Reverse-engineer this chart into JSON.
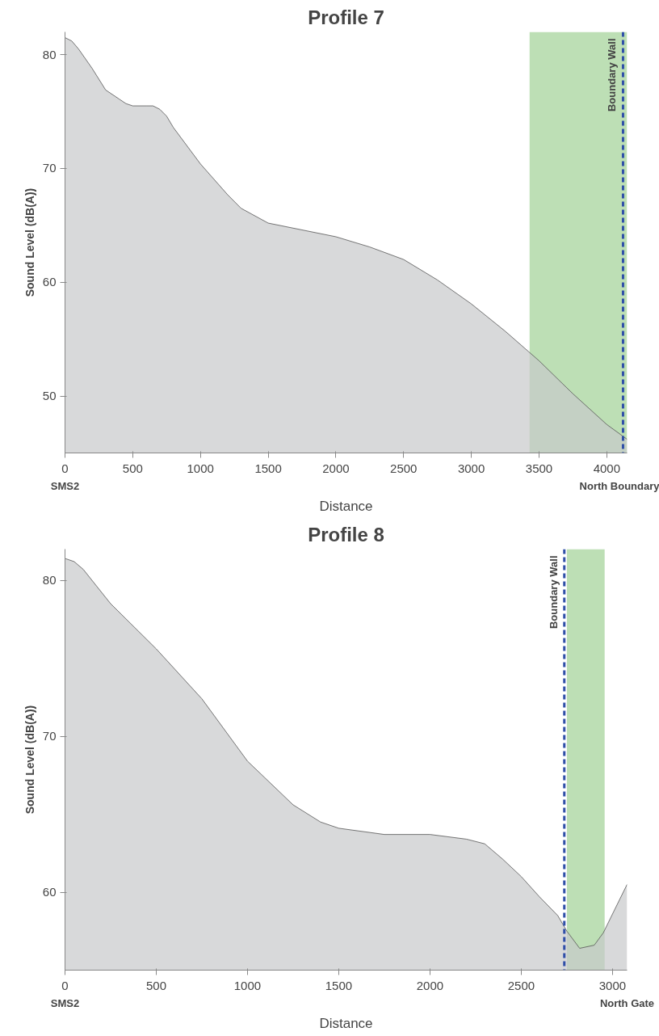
{
  "chart_data": [
    {
      "type": "area",
      "title": "Profile 7",
      "xlabel": "Distance",
      "ylabel": "Sound Level (dB(A))",
      "x": [
        0,
        50,
        100,
        200,
        300,
        400,
        450,
        500,
        600,
        650,
        700,
        750,
        800,
        1000,
        1200,
        1300,
        1500,
        1750,
        2000,
        2250,
        2500,
        2750,
        3000,
        3250,
        3500,
        3750,
        4000,
        4150
      ],
      "series": [
        {
          "color": "#c8c9cb",
          "values": [
            81.5,
            81.2,
            80.5,
            78.8,
            76.9,
            76.1,
            75.7,
            75.5,
            75.5,
            75.5,
            75.2,
            74.6,
            73.6,
            70.4,
            67.7,
            66.5,
            65.2,
            64.6,
            64.0,
            63.1,
            62.0,
            60.2,
            58.1,
            55.7,
            53.1,
            50.2,
            47.5,
            46.2
          ]
        }
      ],
      "xlim": [
        0,
        4150
      ],
      "ylim": [
        45,
        82
      ],
      "xticks": [
        0,
        500,
        1000,
        1500,
        2000,
        2500,
        3000,
        3500,
        4000
      ],
      "yticks": [
        50,
        60,
        70,
        80
      ],
      "bands": [
        {
          "axis": "x",
          "from": 3430,
          "to": 4150,
          "color": "#bddfb5"
        }
      ],
      "ref_lines": [
        {
          "axis": "x",
          "value": 4120,
          "label": "Boundary Wall",
          "color": "#2f4fa8",
          "line_style": "dashed"
        }
      ],
      "annotations": [
        "SMS2",
        "North Boundary"
      ]
    },
    {
      "type": "area",
      "title": "Profile 8",
      "xlabel": "Distance",
      "ylabel": "Sound Level (dB(A))",
      "x": [
        0,
        50,
        100,
        250,
        500,
        750,
        1000,
        1250,
        1400,
        1500,
        1750,
        2000,
        2200,
        2300,
        2400,
        2500,
        2600,
        2700,
        2750,
        2820,
        2900,
        2950,
        3000,
        3080
      ],
      "series": [
        {
          "color": "#c8c9cb",
          "values": [
            81.4,
            81.2,
            80.7,
            78.5,
            75.6,
            72.4,
            68.4,
            65.6,
            64.5,
            64.1,
            63.7,
            63.7,
            63.4,
            63.1,
            62.1,
            61.0,
            59.7,
            58.5,
            57.5,
            56.4,
            56.6,
            57.4,
            58.6,
            60.5
          ]
        }
      ],
      "xlim": [
        0,
        3080
      ],
      "ylim": [
        55,
        82
      ],
      "xticks": [
        0,
        500,
        1000,
        1500,
        2000,
        2500,
        3000
      ],
      "yticks": [
        60,
        70,
        80
      ],
      "bands": [
        {
          "axis": "x",
          "from": 2750,
          "to": 2957,
          "color": "#bddfb5"
        }
      ],
      "ref_lines": [
        {
          "axis": "x",
          "value": 2736,
          "label": "Boundary Wall",
          "color": "#2f4fa8",
          "line_style": "dashed"
        }
      ],
      "annotations": [
        "SMS2",
        "North Gate"
      ]
    }
  ]
}
